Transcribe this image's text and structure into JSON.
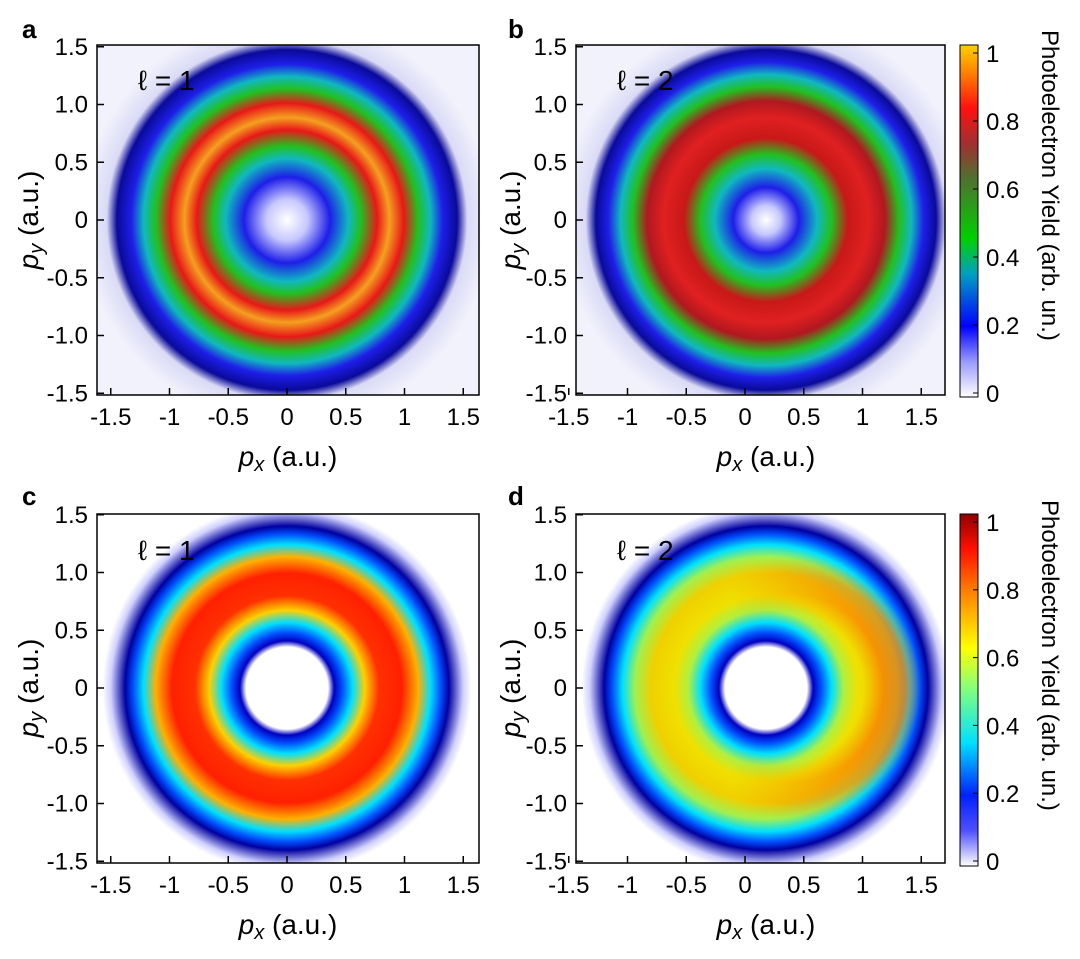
{
  "figure": {
    "xlabel_var": "p",
    "xlabel_sub": "x",
    "ylabel_var": "p",
    "ylabel_sub": "y",
    "axis_unit": " (a.u.)"
  },
  "chart_data": [
    {
      "panel": "a",
      "type": "heatmap",
      "annotation": "ℓ = 1",
      "xlim": [
        -1.5,
        1.5
      ],
      "ylim": [
        -1.5,
        1.5
      ],
      "xticks": [
        "-1.5",
        "-1",
        "-0.5",
        "0",
        "0.5",
        "1",
        "1.5"
      ],
      "yticks": [
        "1.5",
        "1.0",
        "0.5",
        "0",
        "-0.5",
        "-1.0",
        "-1.5"
      ],
      "colormap": "experimental",
      "ring": {
        "peak_radius": 0.58,
        "center": [
          0,
          0
        ],
        "intensity": "uniform"
      }
    },
    {
      "panel": "b",
      "type": "heatmap",
      "annotation": "ℓ = 2",
      "xlim": [
        -1.5,
        1.5
      ],
      "ylim": [
        -1.5,
        1.5
      ],
      "xticks": [
        "-1.5",
        "-1",
        "-0.5",
        "0",
        "0.5",
        "1",
        "1.5"
      ],
      "yticks": [
        "1.5",
        "1.0",
        "0.5",
        "0",
        "-0.5",
        "-1.0",
        "-1.5"
      ],
      "colormap": "experimental",
      "ring": {
        "peak_radius": 0.55,
        "center": [
          0.1,
          0
        ],
        "intensity": "uniform"
      },
      "colorbar": {
        "label": "Photoelectron Yield (arb. un.)",
        "ticks": [
          "1",
          "0.8",
          "0.6",
          "0.4",
          "0.2",
          "0"
        ]
      }
    },
    {
      "panel": "c",
      "type": "heatmap",
      "annotation": "ℓ = 1",
      "xlim": [
        -1.5,
        1.5
      ],
      "ylim": [
        -1.5,
        1.5
      ],
      "xticks": [
        "-1.5",
        "-1",
        "-0.5",
        "0",
        "0.5",
        "1",
        "1.5"
      ],
      "yticks": [
        "1.5",
        "1.0",
        "0.5",
        "0",
        "-0.5",
        "-1.0",
        "-1.5"
      ],
      "colormap": "jet",
      "ring": {
        "peak_radius": 0.67,
        "center": [
          0,
          0
        ],
        "intensity": "uniform"
      }
    },
    {
      "panel": "d",
      "type": "heatmap",
      "annotation": "ℓ = 2",
      "xlim": [
        -1.5,
        1.5
      ],
      "ylim": [
        -1.5,
        1.5
      ],
      "xticks": [
        "-1.5",
        "-1",
        "-0.5",
        "0",
        "0.5",
        "1",
        "1.5"
      ],
      "yticks": [
        "1.5",
        "1.0",
        "0.5",
        "0",
        "-0.5",
        "-1.0",
        "-1.5"
      ],
      "colormap": "jet",
      "ring": {
        "peak_radius": 0.67,
        "center": [
          0.1,
          0
        ],
        "intensity": "stronger on the right"
      },
      "colorbar": {
        "label": "Photoelectron Yield (arb. un.)",
        "ticks": [
          "1",
          "0.8",
          "0.6",
          "0.4",
          "0.2",
          "0"
        ]
      }
    }
  ]
}
